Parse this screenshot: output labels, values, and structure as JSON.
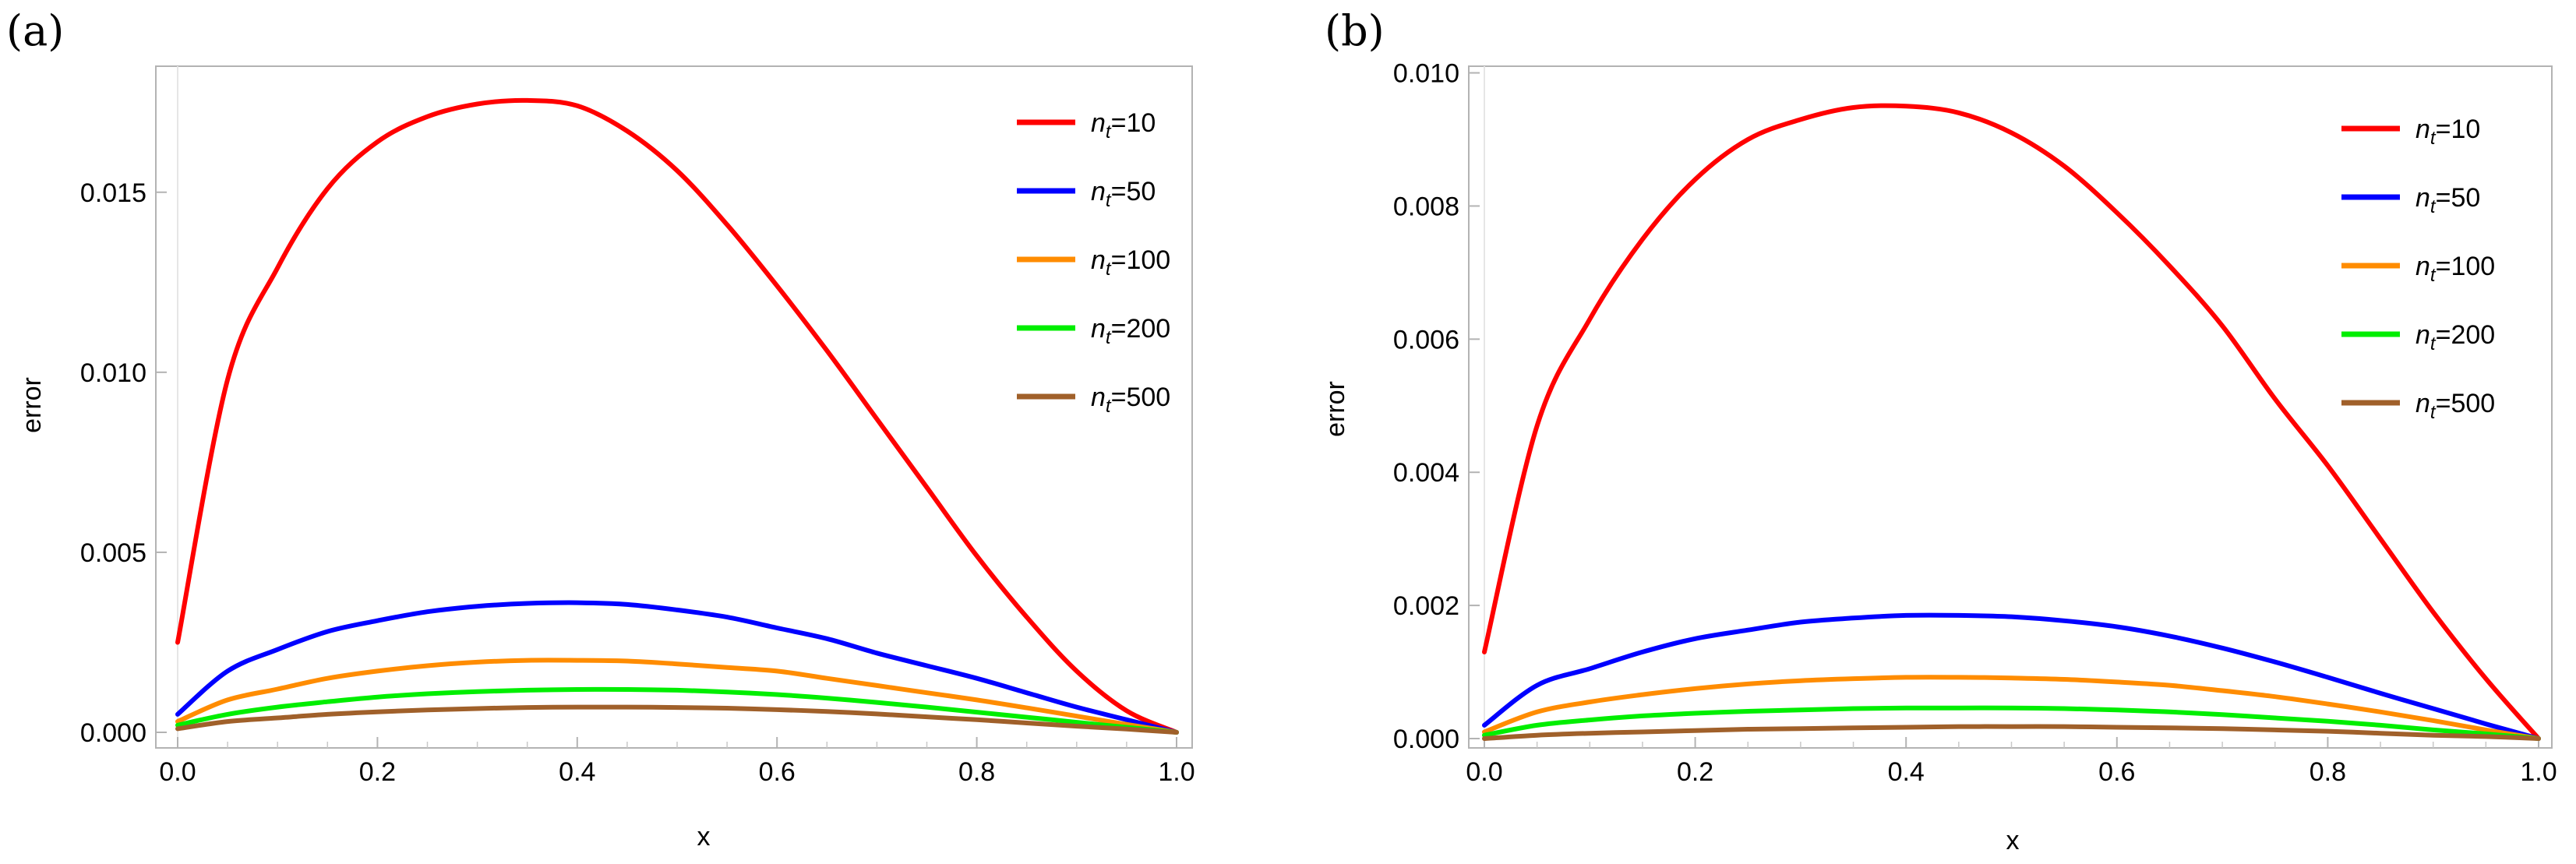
{
  "chart_data": [
    {
      "panel": "(a)",
      "type": "line",
      "title": "",
      "xlabel": "x",
      "ylabel": "error",
      "xlim": [
        0.0,
        1.0
      ],
      "ylim": [
        0.0,
        0.0185
      ],
      "xticks": [
        "0.0",
        "0.2",
        "0.4",
        "0.6",
        "0.8",
        "1.0"
      ],
      "yticks": [
        "0.000",
        "0.005",
        "0.010",
        "0.015"
      ],
      "yticks_values": [
        0.0,
        0.005,
        0.01,
        0.015
      ],
      "legend_position": "top-right",
      "x": [
        0.0,
        0.05,
        0.1,
        0.15,
        0.2,
        0.25,
        0.3,
        0.35,
        0.4,
        0.45,
        0.5,
        0.55,
        0.6,
        0.65,
        0.7,
        0.75,
        0.8,
        0.85,
        0.9,
        0.95,
        1.0
      ],
      "series": [
        {
          "name": "n_t=10",
          "base": "n",
          "sub": "t",
          "eq": "=10",
          "color": "#ff0000",
          "values": [
            0.0025,
            0.0098,
            0.0129,
            0.0151,
            0.0164,
            0.0171,
            0.01745,
            0.01755,
            0.0174,
            0.0167,
            0.0156,
            0.0141,
            0.0124,
            0.0106,
            0.0087,
            0.0068,
            0.0049,
            0.0032,
            0.0017,
            0.0006,
            0.0
          ]
        },
        {
          "name": "n_t=50",
          "base": "n",
          "sub": "t",
          "eq": "=50",
          "color": "#0000ff",
          "values": [
            0.0005,
            0.0017,
            0.0023,
            0.0028,
            0.0031,
            0.00335,
            0.0035,
            0.00358,
            0.0036,
            0.00355,
            0.0034,
            0.0032,
            0.0029,
            0.0026,
            0.0022,
            0.00185,
            0.0015,
            0.0011,
            0.0007,
            0.00035,
            0.0
          ]
        },
        {
          "name": "n_t=100",
          "base": "n",
          "sub": "t",
          "eq": "=100",
          "color": "#ff8c00",
          "values": [
            0.0003,
            0.0009,
            0.0012,
            0.0015,
            0.0017,
            0.00185,
            0.00195,
            0.002,
            0.002,
            0.00198,
            0.0019,
            0.0018,
            0.0017,
            0.0015,
            0.0013,
            0.0011,
            0.0009,
            0.00068,
            0.00045,
            0.00022,
            0.0
          ]
        },
        {
          "name": "n_t=200",
          "base": "n",
          "sub": "t",
          "eq": "=200",
          "color": "#00ee00",
          "values": [
            0.0002,
            0.0005,
            0.0007,
            0.00085,
            0.00098,
            0.00107,
            0.00113,
            0.00117,
            0.00119,
            0.00119,
            0.00117,
            0.00112,
            0.00105,
            0.00095,
            0.00083,
            0.0007,
            0.00056,
            0.00042,
            0.00028,
            0.00014,
            0.0
          ]
        },
        {
          "name": "n_t=500",
          "base": "n",
          "sub": "t",
          "eq": "=500",
          "color": "#a0602a",
          "values": [
            0.0001,
            0.0003,
            0.0004,
            0.0005,
            0.00057,
            0.00062,
            0.00066,
            0.00069,
            0.0007,
            0.0007,
            0.00069,
            0.00067,
            0.00063,
            0.00058,
            0.00051,
            0.00043,
            0.00035,
            0.00026,
            0.00017,
            9e-05,
            0.0
          ]
        }
      ]
    },
    {
      "panel": "(b)",
      "type": "line",
      "title": "",
      "xlabel": "x",
      "ylabel": "error",
      "xlim": [
        0.0,
        1.0
      ],
      "ylim": [
        0.0,
        0.0101
      ],
      "xticks": [
        "0.0",
        "0.2",
        "0.4",
        "0.6",
        "0.8",
        "1.0"
      ],
      "yticks": [
        "0.000",
        "0.002",
        "0.004",
        "0.006",
        "0.008",
        "0.010"
      ],
      "yticks_values": [
        0.0,
        0.002,
        0.004,
        0.006,
        0.008,
        0.01
      ],
      "legend_position": "top-right",
      "x": [
        0.0,
        0.05,
        0.1,
        0.15,
        0.2,
        0.25,
        0.3,
        0.35,
        0.4,
        0.45,
        0.5,
        0.55,
        0.6,
        0.65,
        0.7,
        0.75,
        0.8,
        0.85,
        0.9,
        0.95,
        1.0
      ],
      "series": [
        {
          "name": "n_t=10",
          "base": "n",
          "sub": "t",
          "eq": "=10",
          "color": "#ff0000",
          "values": [
            0.0013,
            0.0047,
            0.0063,
            0.0075,
            0.0084,
            0.009,
            0.0093,
            0.00948,
            0.0095,
            0.0094,
            0.0091,
            0.0086,
            0.0079,
            0.0071,
            0.0062,
            0.0051,
            0.0041,
            0.003,
            0.0019,
            0.0009,
            0.0
          ]
        },
        {
          "name": "n_t=50",
          "base": "n",
          "sub": "t",
          "eq": "=50",
          "color": "#0000ff",
          "values": [
            0.0002,
            0.0008,
            0.00105,
            0.0013,
            0.0015,
            0.00163,
            0.00175,
            0.00181,
            0.00185,
            0.00185,
            0.00183,
            0.00177,
            0.00168,
            0.00154,
            0.00136,
            0.00115,
            0.00092,
            0.00068,
            0.00045,
            0.00022,
            0.0
          ]
        },
        {
          "name": "n_t=100",
          "base": "n",
          "sub": "t",
          "eq": "=100",
          "color": "#ff8c00",
          "values": [
            0.0001,
            0.0004,
            0.00055,
            0.00066,
            0.00075,
            0.00082,
            0.00087,
            0.0009,
            0.00092,
            0.00092,
            0.00091,
            0.00089,
            0.00085,
            0.0008,
            0.00072,
            0.00063,
            0.00052,
            0.0004,
            0.00027,
            0.00013,
            0.0
          ]
        },
        {
          "name": "n_t=200",
          "base": "n",
          "sub": "t",
          "eq": "=200",
          "color": "#00ee00",
          "values": [
            5e-05,
            0.0002,
            0.00028,
            0.00034,
            0.00038,
            0.00041,
            0.00043,
            0.00045,
            0.00046,
            0.00046,
            0.00046,
            0.00045,
            0.00043,
            0.0004,
            0.00036,
            0.00031,
            0.00026,
            0.0002,
            0.00013,
            7e-05,
            0.0
          ]
        },
        {
          "name": "n_t=500",
          "base": "n",
          "sub": "t",
          "eq": "=500",
          "color": "#a0602a",
          "values": [
            0.0,
            5e-05,
            8e-05,
            0.0001,
            0.00012,
            0.00014,
            0.00015,
            0.00016,
            0.00017,
            0.00018,
            0.00018,
            0.00018,
            0.00017,
            0.00016,
            0.00015,
            0.00013,
            0.00011,
            8e-05,
            5e-05,
            3e-05,
            0.0
          ]
        }
      ]
    }
  ]
}
